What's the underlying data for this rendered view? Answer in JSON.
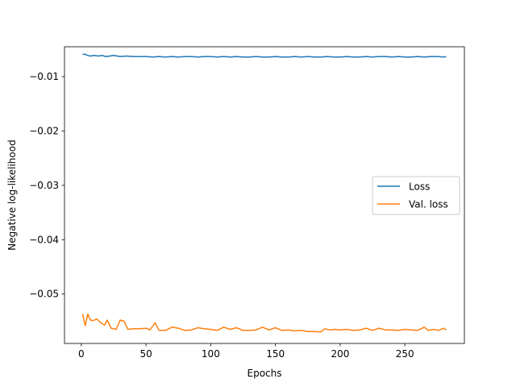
{
  "chart_data": {
    "type": "line",
    "title": "",
    "xlabel": "Epochs",
    "ylabel": "Negative log-likelihood",
    "xlim": [
      -13,
      296
    ],
    "ylim": [
      -0.0591,
      -0.0045
    ],
    "xticks": [
      0,
      50,
      100,
      150,
      200,
      250
    ],
    "xtick_labels": [
      "0",
      "50",
      "100",
      "150",
      "200",
      "250"
    ],
    "yticks": [
      -0.01,
      -0.02,
      -0.03,
      -0.04,
      -0.05
    ],
    "ytick_labels": [
      "−0.01",
      "−0.02",
      "−0.03",
      "−0.04",
      "−0.05"
    ],
    "grid": false,
    "legend_position": "center-right",
    "series": [
      {
        "name": "Loss",
        "color": "#1f77b4",
        "x": [
          1,
          3,
          5,
          7,
          10,
          13,
          16,
          19,
          22,
          25,
          30,
          35,
          40,
          45,
          50,
          55,
          60,
          65,
          70,
          75,
          80,
          85,
          90,
          95,
          100,
          105,
          110,
          115,
          120,
          125,
          130,
          135,
          140,
          145,
          150,
          155,
          160,
          165,
          170,
          175,
          180,
          185,
          190,
          195,
          200,
          205,
          210,
          215,
          220,
          225,
          230,
          235,
          240,
          245,
          250,
          255,
          260,
          265,
          270,
          275,
          280,
          282
        ],
        "y": [
          -0.0059,
          -0.0059,
          -0.0061,
          -0.0062,
          -0.0061,
          -0.0062,
          -0.0061,
          -0.0063,
          -0.0062,
          -0.0061,
          -0.0063,
          -0.0062,
          -0.0063,
          -0.0063,
          -0.0063,
          -0.0064,
          -0.0063,
          -0.0064,
          -0.0063,
          -0.0064,
          -0.0063,
          -0.0063,
          -0.0064,
          -0.0063,
          -0.0063,
          -0.0064,
          -0.0063,
          -0.0064,
          -0.0063,
          -0.0064,
          -0.0064,
          -0.0063,
          -0.0064,
          -0.0064,
          -0.0063,
          -0.0064,
          -0.0064,
          -0.0063,
          -0.0064,
          -0.0063,
          -0.0064,
          -0.0064,
          -0.0063,
          -0.0064,
          -0.0064,
          -0.0063,
          -0.0064,
          -0.0064,
          -0.0063,
          -0.0064,
          -0.0063,
          -0.0063,
          -0.0064,
          -0.0063,
          -0.0064,
          -0.0064,
          -0.0063,
          -0.0064,
          -0.0063,
          -0.0063,
          -0.0064,
          -0.0063
        ]
      },
      {
        "name": "Val. loss",
        "color": "#ff7f0e",
        "x": [
          1,
          3,
          5,
          7,
          9,
          12,
          15,
          18,
          20,
          23,
          27,
          30,
          33,
          36,
          40,
          45,
          50,
          53,
          57,
          60,
          65,
          70,
          75,
          80,
          85,
          90,
          95,
          100,
          105,
          110,
          115,
          120,
          125,
          130,
          135,
          140,
          145,
          150,
          155,
          160,
          165,
          170,
          175,
          180,
          185,
          188,
          192,
          196,
          200,
          205,
          210,
          215,
          220,
          225,
          230,
          235,
          240,
          245,
          250,
          255,
          260,
          265,
          268,
          272,
          276,
          280,
          282
        ],
        "y": [
          -0.0537,
          -0.0558,
          -0.0537,
          -0.0548,
          -0.0549,
          -0.0546,
          -0.0553,
          -0.0557,
          -0.0548,
          -0.0563,
          -0.0565,
          -0.0548,
          -0.055,
          -0.0565,
          -0.0564,
          -0.0564,
          -0.0563,
          -0.0566,
          -0.0553,
          -0.0567,
          -0.0567,
          -0.0561,
          -0.0563,
          -0.0567,
          -0.0566,
          -0.0562,
          -0.0564,
          -0.0565,
          -0.0567,
          -0.0561,
          -0.0565,
          -0.0562,
          -0.0567,
          -0.0567,
          -0.0566,
          -0.0561,
          -0.0566,
          -0.0562,
          -0.0567,
          -0.0566,
          -0.0568,
          -0.0567,
          -0.0569,
          -0.0569,
          -0.057,
          -0.0564,
          -0.0566,
          -0.0565,
          -0.0566,
          -0.0565,
          -0.0567,
          -0.0566,
          -0.0563,
          -0.0567,
          -0.0563,
          -0.0566,
          -0.0566,
          -0.0567,
          -0.0565,
          -0.0566,
          -0.0567,
          -0.0561,
          -0.0567,
          -0.0565,
          -0.0567,
          -0.0563,
          -0.0566
        ]
      }
    ]
  }
}
